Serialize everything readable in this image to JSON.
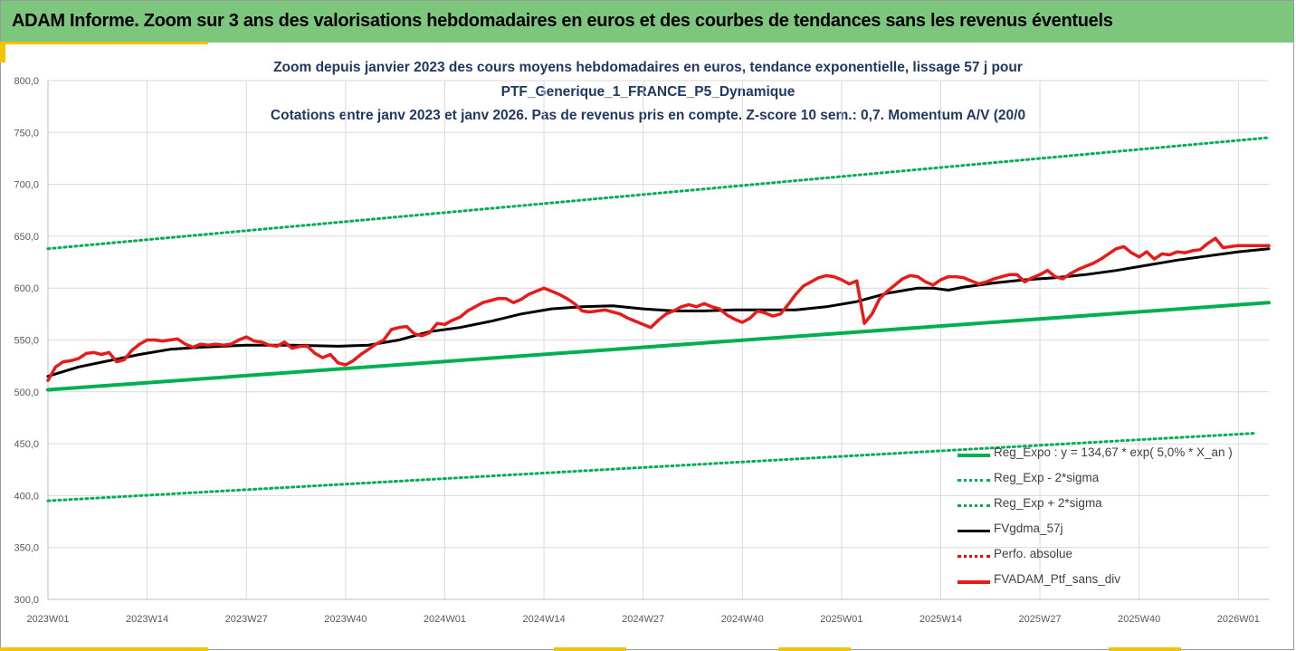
{
  "header": {
    "title": "ADAM Informe. Zoom sur 3 ans des valorisations hebdomadaires en euros et des courbes de tendances sans les revenus éventuels"
  },
  "chart_data": {
    "type": "line",
    "title_lines": [
      "Zoom depuis janvier 2023 des cours moyens hebdomadaires  en euros, tendance exponentielle, lissage 57 j pour",
      "PTF_Generique_1_FRANCE_P5_Dynamique",
      "Cotations entre janv 2023 et janv 2026. Pas de revenus pris en compte. Z-score 10 sem.: 0,7. Momentum A/V (20/0"
    ],
    "ylim": [
      300,
      800
    ],
    "yticks": [
      "300,0",
      "350,0",
      "400,0",
      "450,0",
      "500,0",
      "550,0",
      "600,0",
      "650,0",
      "700,0",
      "750,0",
      "800,0"
    ],
    "ytick_values": [
      300,
      350,
      400,
      450,
      500,
      550,
      600,
      650,
      700,
      750,
      800
    ],
    "x_range": [
      0,
      160
    ],
    "xtick_labels": [
      "2023W01",
      "2023W14",
      "2023W27",
      "2023W40",
      "2024W01",
      "2024W14",
      "2024W27",
      "2024W40",
      "2025W01",
      "2025W14",
      "2025W27",
      "2025W40",
      "2026W01"
    ],
    "xtick_positions": [
      0,
      13,
      26,
      39,
      52,
      65,
      78,
      91,
      104,
      117,
      130,
      143,
      156
    ],
    "grid": true,
    "legend_position": "bottom-right",
    "series": [
      {
        "name": "Reg_Expo : y = 134,67 * exp( 5,0% *  X_an )",
        "color": "#00b050",
        "style": "solid",
        "width": 4,
        "x": [
          0,
          160
        ],
        "values": [
          502,
          586
        ]
      },
      {
        "name": "Reg_Exp - 2*sigma",
        "color": "#00b050",
        "style": "dotted",
        "width": 3,
        "x": [
          0,
          158
        ],
        "values": [
          395,
          460
        ]
      },
      {
        "name": "Reg_Exp + 2*sigma",
        "color": "#00b050",
        "style": "dotted",
        "width": 3,
        "x": [
          0,
          160
        ],
        "values": [
          638,
          745
        ]
      },
      {
        "name": "FVgdma_57j",
        "color": "#000000",
        "style": "solid",
        "width": 3,
        "x": [
          0,
          4,
          8,
          12,
          16,
          20,
          26,
          32,
          38,
          42,
          46,
          50,
          54,
          58,
          62,
          66,
          70,
          74,
          78,
          82,
          86,
          90,
          94,
          98,
          102,
          106,
          110,
          114,
          116,
          118,
          120,
          124,
          128,
          132,
          136,
          140,
          144,
          148,
          152,
          156,
          160
        ],
        "values": [
          515,
          524,
          530,
          536,
          541,
          543,
          545,
          545,
          544,
          545,
          550,
          558,
          562,
          568,
          575,
          580,
          582,
          583,
          580,
          578,
          578,
          579,
          579,
          579,
          582,
          587,
          595,
          600,
          600,
          598,
          601,
          605,
          608,
          610,
          613,
          617,
          622,
          627,
          631,
          635,
          638
        ]
      },
      {
        "name": "Perfo. absolue",
        "color": "#ff0000",
        "style": "dotted",
        "width": 2,
        "x": [],
        "values": []
      },
      {
        "name": "FVADAM_Ptf_sans_div",
        "color": "#e81b1b",
        "style": "solid",
        "width": 3.5,
        "x": [
          0,
          1,
          2,
          3,
          4,
          5,
          6,
          7,
          8,
          9,
          10,
          11,
          12,
          13,
          14,
          15,
          16,
          17,
          18,
          19,
          20,
          21,
          22,
          23,
          24,
          25,
          26,
          27,
          28,
          29,
          30,
          31,
          32,
          33,
          34,
          35,
          36,
          37,
          38,
          39,
          40,
          41,
          42,
          43,
          44,
          45,
          46,
          47,
          48,
          49,
          50,
          51,
          52,
          53,
          54,
          55,
          56,
          57,
          58,
          59,
          60,
          61,
          62,
          63,
          64,
          65,
          66,
          67,
          68,
          69,
          70,
          71,
          72,
          73,
          74,
          75,
          76,
          77,
          78,
          79,
          80,
          81,
          82,
          83,
          84,
          85,
          86,
          87,
          88,
          89,
          90,
          91,
          92,
          93,
          94,
          95,
          96,
          97,
          98,
          99,
          100,
          101,
          102,
          103,
          104,
          105,
          106,
          107,
          108,
          109,
          110,
          111,
          112,
          113,
          114,
          115,
          116,
          117,
          118,
          119,
          120,
          121,
          122,
          123,
          124,
          125,
          126,
          127,
          128,
          129,
          130,
          131,
          132,
          133,
          134,
          135,
          136,
          137,
          138,
          139,
          140,
          141,
          142,
          143,
          144,
          145,
          146,
          147,
          148,
          149,
          150,
          151,
          152,
          153,
          154,
          155,
          156,
          157,
          158,
          159,
          160
        ],
        "values": [
          511,
          524,
          529,
          530,
          532,
          537,
          538,
          536,
          538,
          529,
          531,
          540,
          546,
          550,
          550,
          549,
          550,
          551,
          546,
          543,
          546,
          545,
          546,
          545,
          546,
          550,
          553,
          549,
          548,
          545,
          544,
          548,
          542,
          544,
          544,
          537,
          533,
          536,
          528,
          526,
          530,
          536,
          541,
          546,
          550,
          560,
          562,
          563,
          556,
          554,
          557,
          566,
          565,
          569,
          572,
          578,
          582,
          586,
          588,
          590,
          590,
          586,
          589,
          594,
          597,
          600,
          597,
          594,
          590,
          585,
          578,
          577,
          578,
          579,
          577,
          575,
          571,
          568,
          565,
          562,
          569,
          575,
          578,
          582,
          584,
          582,
          585,
          582,
          580,
          574,
          570,
          567,
          571,
          578,
          576,
          573,
          575,
          584,
          594,
          602,
          606,
          610,
          612,
          611,
          608,
          604,
          607,
          566,
          575,
          590,
          597,
          603,
          609,
          612,
          611,
          606,
          603,
          608,
          611,
          611,
          610,
          607,
          604,
          606,
          609,
          611,
          613,
          613,
          606,
          610,
          613,
          617,
          611,
          609,
          614,
          618,
          621,
          624,
          628,
          633,
          638,
          640,
          634,
          630,
          635,
          628,
          633,
          632,
          635,
          634,
          636,
          637,
          643,
          648,
          639,
          640,
          641,
          641,
          641,
          641,
          641
        ]
      }
    ]
  }
}
